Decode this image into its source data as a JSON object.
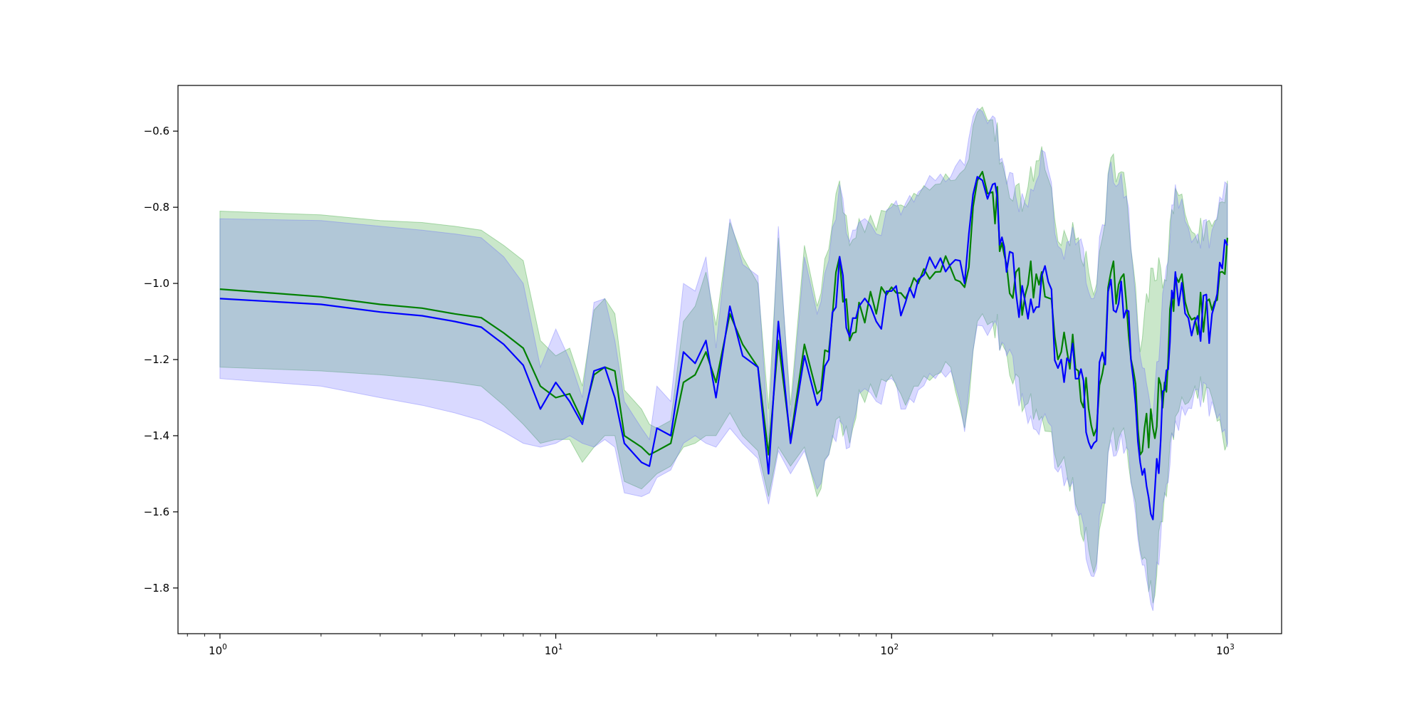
{
  "chart_data": {
    "type": "line",
    "title": "",
    "xlabel": "",
    "ylabel": "",
    "xscale": "log",
    "xlim": [
      0.75,
      1450
    ],
    "ylim": [
      -1.92,
      -0.48
    ],
    "grid": false,
    "legend": "none",
    "x_ticks": [
      {
        "value": 1,
        "base": "10",
        "exp": "0"
      },
      {
        "value": 10,
        "base": "10",
        "exp": "1"
      },
      {
        "value": 100,
        "base": "10",
        "exp": "2"
      },
      {
        "value": 1000,
        "base": "10",
        "exp": "3"
      }
    ],
    "y_ticks": [
      {
        "value": -0.6,
        "label": "−0.6"
      },
      {
        "value": -0.8,
        "label": "−0.8"
      },
      {
        "value": -1.0,
        "label": "−1.0"
      },
      {
        "value": -1.2,
        "label": "−1.2"
      },
      {
        "value": -1.4,
        "label": "−1.4"
      },
      {
        "value": -1.6,
        "label": "−1.6"
      },
      {
        "value": -1.8,
        "label": "−1.8"
      }
    ],
    "series": [
      {
        "color": "#008000",
        "band_color": "#2ca02c",
        "x": [
          1,
          2,
          3,
          4,
          5,
          6,
          7,
          8,
          9,
          10,
          11,
          12,
          13,
          14,
          15,
          16,
          18,
          19,
          20,
          22,
          24,
          26,
          28,
          30,
          33,
          36,
          40,
          43,
          46,
          50,
          55,
          60,
          65,
          70,
          75,
          80,
          90,
          100,
          110,
          120,
          135,
          150,
          165,
          180,
          200,
          220,
          250,
          280,
          320,
          360,
          400,
          450,
          500,
          550,
          600,
          650,
          700,
          800,
          900,
          1000
        ],
        "y": [
          -1.015,
          -1.035,
          -1.055,
          -1.065,
          -1.08,
          -1.09,
          -1.13,
          -1.17,
          -1.27,
          -1.3,
          -1.29,
          -1.36,
          -1.24,
          -1.22,
          -1.23,
          -1.4,
          -1.43,
          -1.45,
          -1.44,
          -1.42,
          -1.26,
          -1.24,
          -1.18,
          -1.26,
          -1.08,
          -1.16,
          -1.22,
          -1.45,
          -1.15,
          -1.41,
          -1.16,
          -1.29,
          -1.18,
          -0.93,
          -1.15,
          -1.05,
          -1.08,
          -1.01,
          -1.04,
          -1.0,
          -0.97,
          -0.96,
          -1.01,
          -0.73,
          -0.76,
          -0.95,
          -1.03,
          -0.97,
          -1.18,
          -1.23,
          -1.4,
          -0.97,
          -1.05,
          -1.45,
          -1.38,
          -1.26,
          -0.98,
          -1.09,
          -1.07,
          -0.88
        ],
        "lower": [
          -1.22,
          -1.23,
          -1.24,
          -1.25,
          -1.26,
          -1.27,
          -1.32,
          -1.37,
          -1.42,
          -1.41,
          -1.41,
          -1.47,
          -1.43,
          -1.4,
          -1.4,
          -1.52,
          -1.54,
          -1.52,
          -1.5,
          -1.48,
          -1.43,
          -1.42,
          -1.4,
          -1.4,
          -1.34,
          -1.4,
          -1.44,
          -1.56,
          -1.43,
          -1.48,
          -1.43,
          -1.56,
          -1.45,
          -1.35,
          -1.42,
          -1.28,
          -1.3,
          -1.24,
          -1.32,
          -1.27,
          -1.24,
          -1.22,
          -1.38,
          -1.1,
          -1.1,
          -1.18,
          -1.32,
          -1.35,
          -1.47,
          -1.6,
          -1.76,
          -1.4,
          -1.42,
          -1.7,
          -1.84,
          -1.55,
          -1.35,
          -1.27,
          -1.3,
          -1.42
        ],
        "upper": [
          -0.81,
          -0.82,
          -0.835,
          -0.84,
          -0.85,
          -0.86,
          -0.9,
          -0.94,
          -1.15,
          -1.19,
          -1.17,
          -1.27,
          -1.07,
          -1.04,
          -1.08,
          -1.28,
          -1.33,
          -1.37,
          -1.38,
          -1.36,
          -1.1,
          -1.06,
          -0.97,
          -1.11,
          -0.84,
          -0.93,
          -1.0,
          -1.33,
          -0.88,
          -1.32,
          -0.9,
          -1.06,
          -0.91,
          -0.73,
          -0.9,
          -0.83,
          -0.86,
          -0.79,
          -0.8,
          -0.77,
          -0.74,
          -0.73,
          -0.7,
          -0.55,
          -0.57,
          -0.73,
          -0.78,
          -0.64,
          -0.9,
          -0.88,
          -1.03,
          -0.67,
          -0.76,
          -1.18,
          -0.96,
          -0.99,
          -0.75,
          -0.87,
          -0.85,
          -0.73
        ]
      },
      {
        "color": "#0000ff",
        "band_color": "#6666ff",
        "x": [
          1,
          2,
          3,
          4,
          5,
          6,
          7,
          8,
          9,
          10,
          11,
          12,
          13,
          14,
          15,
          16,
          18,
          19,
          20,
          22,
          24,
          26,
          28,
          30,
          33,
          36,
          40,
          43,
          46,
          50,
          55,
          60,
          65,
          70,
          75,
          80,
          90,
          100,
          110,
          120,
          135,
          150,
          165,
          180,
          200,
          220,
          250,
          280,
          320,
          360,
          400,
          450,
          500,
          550,
          600,
          650,
          700,
          800,
          900,
          1000
        ],
        "y": [
          -1.04,
          -1.055,
          -1.075,
          -1.085,
          -1.1,
          -1.115,
          -1.16,
          -1.215,
          -1.33,
          -1.26,
          -1.31,
          -1.37,
          -1.23,
          -1.22,
          -1.3,
          -1.42,
          -1.47,
          -1.48,
          -1.38,
          -1.4,
          -1.18,
          -1.21,
          -1.15,
          -1.3,
          -1.06,
          -1.19,
          -1.22,
          -1.5,
          -1.1,
          -1.42,
          -1.19,
          -1.32,
          -1.2,
          -0.93,
          -1.14,
          -1.06,
          -1.1,
          -1.02,
          -1.05,
          -0.99,
          -0.96,
          -0.95,
          -1.0,
          -0.72,
          -0.74,
          -0.97,
          -1.05,
          -0.98,
          -1.2,
          -1.25,
          -1.42,
          -0.99,
          -1.07,
          -1.47,
          -1.62,
          -1.28,
          -0.97,
          -1.1,
          -1.08,
          -0.9
        ],
        "lower": [
          -1.25,
          -1.27,
          -1.3,
          -1.32,
          -1.34,
          -1.36,
          -1.39,
          -1.42,
          -1.43,
          -1.42,
          -1.4,
          -1.42,
          -1.43,
          -1.41,
          -1.43,
          -1.55,
          -1.56,
          -1.55,
          -1.51,
          -1.49,
          -1.42,
          -1.4,
          -1.42,
          -1.43,
          -1.38,
          -1.42,
          -1.46,
          -1.58,
          -1.44,
          -1.5,
          -1.44,
          -1.54,
          -1.45,
          -1.36,
          -1.43,
          -1.29,
          -1.31,
          -1.25,
          -1.33,
          -1.28,
          -1.25,
          -1.23,
          -1.39,
          -1.11,
          -1.11,
          -1.19,
          -1.33,
          -1.36,
          -1.48,
          -1.61,
          -1.77,
          -1.41,
          -1.43,
          -1.71,
          -1.86,
          -1.56,
          -1.36,
          -1.28,
          -1.31,
          -1.43
        ],
        "upper": [
          -0.83,
          -0.835,
          -0.85,
          -0.86,
          -0.87,
          -0.88,
          -0.93,
          -1.0,
          -1.22,
          -1.12,
          -1.2,
          -1.3,
          -1.05,
          -1.04,
          -1.15,
          -1.31,
          -1.38,
          -1.41,
          -1.27,
          -1.31,
          -1.0,
          -1.02,
          -0.93,
          -1.17,
          -0.83,
          -0.95,
          -0.98,
          -1.41,
          -0.85,
          -1.35,
          -0.93,
          -1.08,
          -0.94,
          -0.74,
          -0.89,
          -0.84,
          -0.87,
          -0.8,
          -0.79,
          -0.76,
          -0.73,
          -0.72,
          -0.69,
          -0.54,
          -0.56,
          -0.74,
          -0.79,
          -0.65,
          -0.91,
          -0.89,
          -1.04,
          -0.68,
          -0.77,
          -1.19,
          -1.35,
          -1.0,
          -0.74,
          -0.88,
          -0.86,
          -0.74
        ]
      }
    ]
  }
}
